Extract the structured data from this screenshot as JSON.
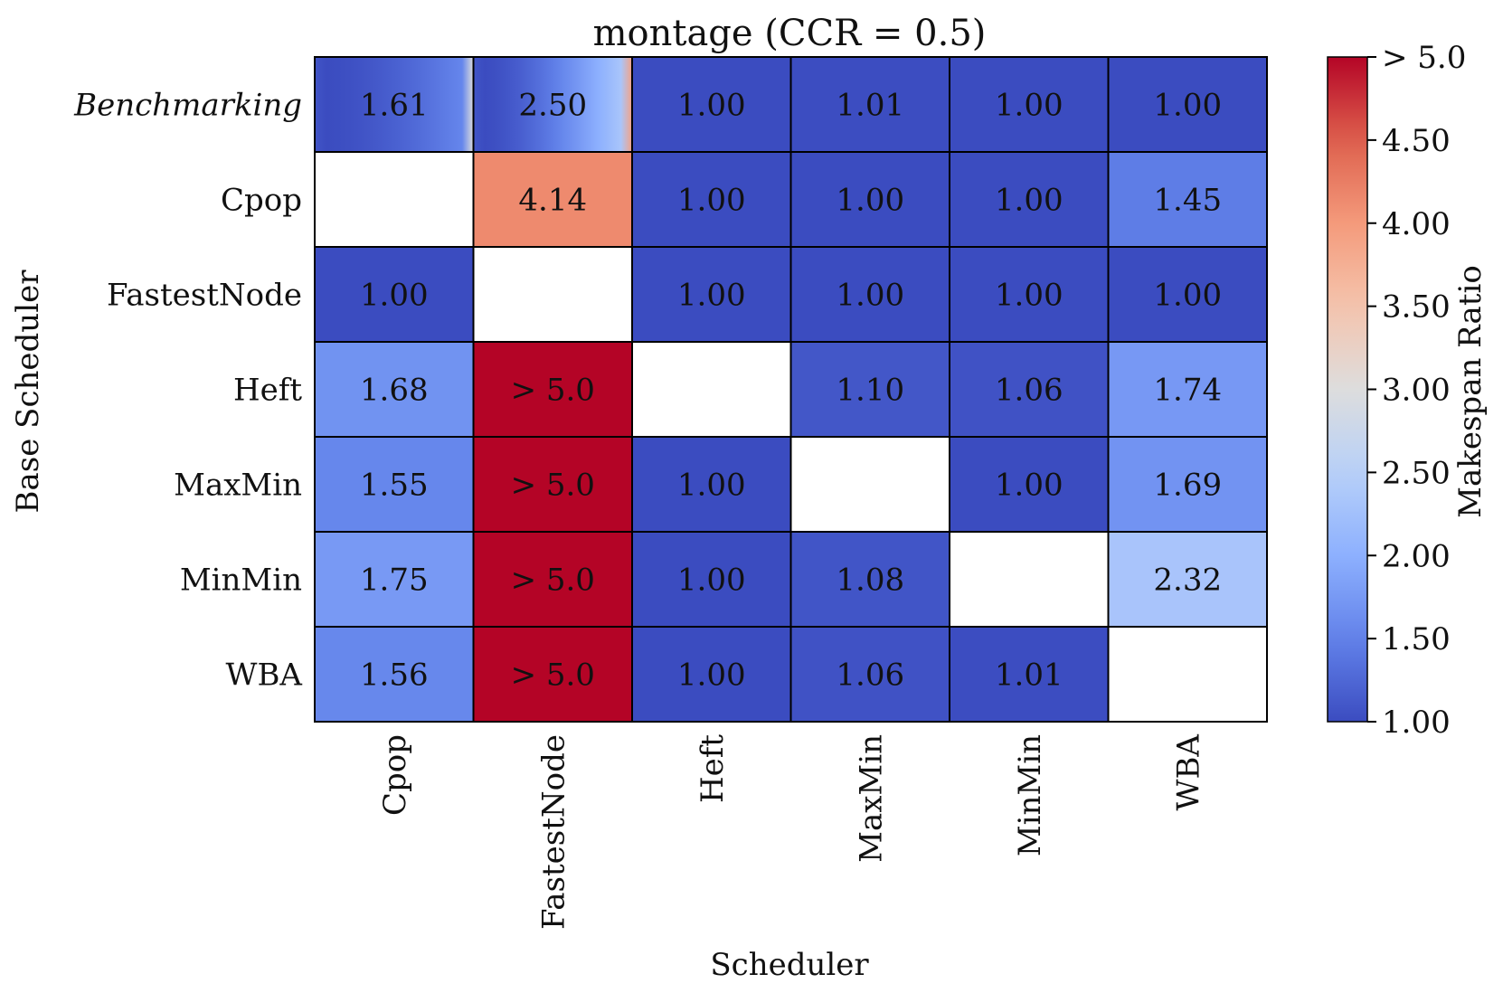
{
  "chart_data": {
    "type": "heatmap",
    "title": "montage (CCR = 0.5)",
    "xlabel": "Scheduler",
    "ylabel": "Base Scheduler",
    "colorbar_label": "Makespan Ratio",
    "x_categories": [
      "Cpop",
      "FastestNode",
      "Heft",
      "MaxMin",
      "MinMin",
      "WBA"
    ],
    "y_categories": [
      "Benchmarking",
      "Cpop",
      "FastestNode",
      "Heft",
      "MaxMin",
      "MinMin",
      "WBA"
    ],
    "values": [
      [
        1.61,
        2.5,
        1.0,
        1.01,
        1.0,
        1.0
      ],
      [
        null,
        4.14,
        1.0,
        1.0,
        1.0,
        1.45
      ],
      [
        1.0,
        null,
        1.0,
        1.0,
        1.0,
        1.0
      ],
      [
        1.68,
        5.5,
        null,
        1.1,
        1.06,
        1.74
      ],
      [
        1.55,
        5.5,
        1.0,
        null,
        1.0,
        1.69
      ],
      [
        1.75,
        5.5,
        1.0,
        1.08,
        null,
        2.32
      ],
      [
        1.56,
        5.5,
        1.0,
        1.06,
        1.01,
        null
      ]
    ],
    "labels": [
      [
        "1.61",
        "2.50",
        "1.00",
        "1.01",
        "1.00",
        "1.00"
      ],
      [
        "",
        "4.14",
        "1.00",
        "1.00",
        "1.00",
        "1.45"
      ],
      [
        "1.00",
        "",
        "1.00",
        "1.00",
        "1.00",
        "1.00"
      ],
      [
        "1.68",
        "> 5.0",
        "",
        "1.10",
        "1.06",
        "1.74"
      ],
      [
        "1.55",
        "> 5.0",
        "1.00",
        "",
        "1.00",
        "1.69"
      ],
      [
        "1.75",
        "> 5.0",
        "1.00",
        "1.08",
        "",
        "2.32"
      ],
      [
        "1.56",
        "> 5.0",
        "1.00",
        "1.06",
        "1.01",
        ""
      ]
    ],
    "gradient_rows": [
      0
    ],
    "color_range": [
      1.0,
      5.0
    ],
    "colormap": "coolwarm",
    "colorbar_ticks": [
      {
        "value": 1.0,
        "label": "1.00"
      },
      {
        "value": 1.5,
        "label": "1.50"
      },
      {
        "value": 2.0,
        "label": "2.00"
      },
      {
        "value": 2.5,
        "label": "2.50"
      },
      {
        "value": 3.0,
        "label": "3.00"
      },
      {
        "value": 3.5,
        "label": "3.50"
      },
      {
        "value": 4.0,
        "label": "4.00"
      },
      {
        "value": 4.5,
        "label": "4.50"
      },
      {
        "value": 5.0,
        "label": "> 5.0"
      }
    ],
    "grid": false,
    "legend": "colorbar-right"
  }
}
